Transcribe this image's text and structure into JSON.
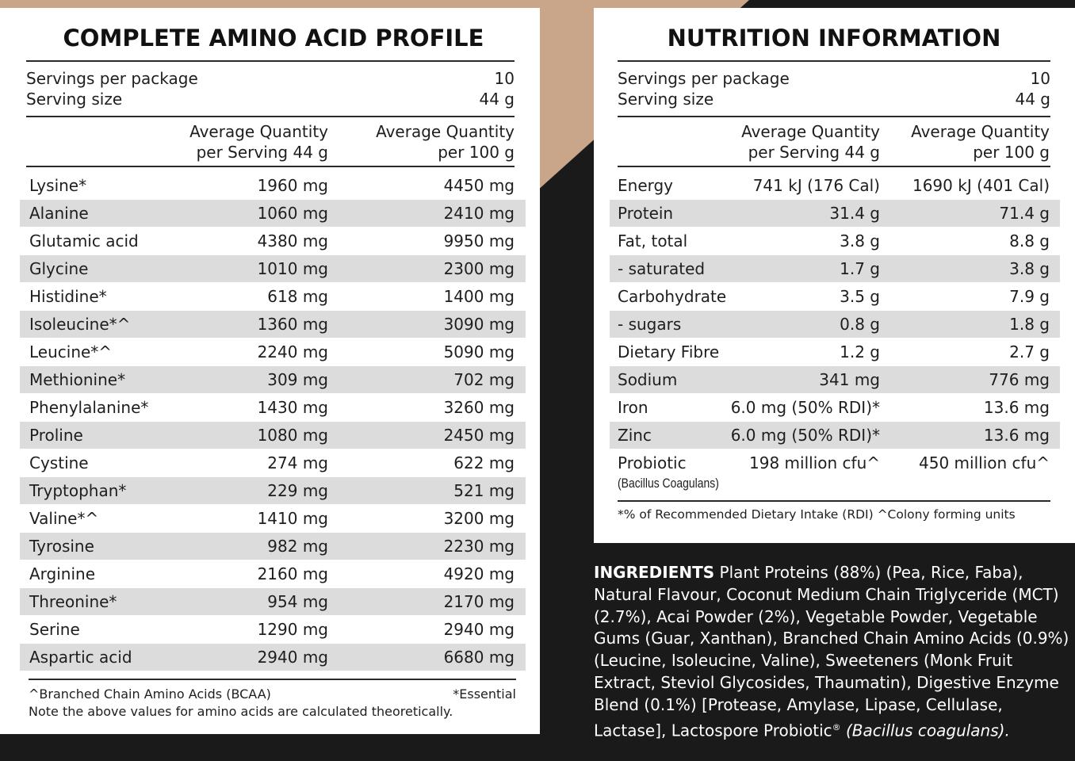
{
  "amino": {
    "title": "COMPLETE AMINO ACID PROFILE",
    "servings": [
      [
        "Servings per package",
        "10"
      ],
      [
        "Serving size",
        "44 g"
      ]
    ],
    "headers": [
      [
        "Average Quantity",
        "per Serving 44 g"
      ],
      [
        "Average Quantity",
        "per 100 g"
      ]
    ],
    "rows": [
      [
        "Lysine*",
        "1960 mg",
        "4450 mg"
      ],
      [
        "Alanine",
        "1060 mg",
        "2410 mg"
      ],
      [
        "Glutamic acid",
        "4380 mg",
        "9950 mg"
      ],
      [
        "Glycine",
        "1010 mg",
        "2300 mg"
      ],
      [
        "Histidine*",
        "618 mg",
        "1400 mg"
      ],
      [
        "Isoleucine*^",
        "1360 mg",
        "3090 mg"
      ],
      [
        "Leucine*^",
        "2240 mg",
        "5090 mg"
      ],
      [
        "Methionine*",
        "309 mg",
        "702 mg"
      ],
      [
        "Phenylalanine*",
        "1430 mg",
        "3260 mg"
      ],
      [
        "Proline",
        "1080 mg",
        "2450 mg"
      ],
      [
        "Cystine",
        "274 mg",
        "622 mg"
      ],
      [
        "Tryptophan*",
        "229 mg",
        "521 mg"
      ],
      [
        "Valine*^",
        "1410 mg",
        "3200 mg"
      ],
      [
        "Tyrosine",
        "982 mg",
        "2230 mg"
      ],
      [
        "Arginine",
        "2160 mg",
        "4920 mg"
      ],
      [
        "Threonine*",
        "954 mg",
        "2170 mg"
      ],
      [
        "Serine",
        "1290 mg",
        "2940 mg"
      ],
      [
        "Aspartic acid",
        "2940 mg",
        "6680 mg"
      ]
    ],
    "notes": [
      "^Branched Chain Amino Acids (BCAA)",
      "*Essential",
      "Note the above values for amino acids are calculated theoretically."
    ]
  },
  "nutrition": {
    "title": "NUTRITION INFORMATION",
    "servings": [
      [
        "Servings per package",
        "10"
      ],
      [
        "Serving size",
        "44 g"
      ]
    ],
    "headers": [
      [
        "Average Quantity",
        "per Serving 44 g"
      ],
      [
        "Average Quantity",
        "per 100 g"
      ]
    ],
    "rows": [
      [
        "Energy",
        "741 kJ (176 Cal)",
        "1690 kJ (401 Cal)"
      ],
      [
        "Protein",
        "31.4 g",
        "71.4 g"
      ],
      [
        "Fat, total",
        "3.8 g",
        "8.8 g"
      ],
      [
        "- saturated",
        "1.7 g",
        "3.8 g"
      ],
      [
        "Carbohydrate",
        "3.5 g",
        "7.9 g"
      ],
      [
        "- sugars",
        "0.8 g",
        "1.8 g"
      ],
      [
        "Dietary Fibre",
        "1.2 g",
        "2.7 g"
      ],
      [
        "Sodium",
        "341 mg",
        "776 mg"
      ],
      [
        "Iron",
        "6.0 mg (50% RDI)*",
        "13.6 mg"
      ],
      [
        "Zinc",
        "6.0 mg (50% RDI)*",
        "13.6 mg"
      ],
      [
        "Probiotic",
        "198 million cfu^",
        "450 million cfu^"
      ]
    ],
    "row_note": "(Bacillus Coagulans)",
    "footnote": "*% of Recommended Dietary Intake (RDI) ^Colony forming units"
  },
  "ingredients": {
    "label": "INGREDIENTS",
    "text": "Plant Proteins (88%) (Pea, Rice, Faba), Natural Flavour, Coconut Medium Chain Triglyceride (MCT) (2.7%), Acai Powder (2%), Vegetable Powder, Vegetable Gums (Guar, Xanthan), Branched Chain Amino Acids (0.9%) (Leucine, Isoleucine, Valine), Sweeteners (Monk Fruit Extract, Steviol Glycosides, Thaumatin), Digestive Enzyme Blend (0.1%) [Protease, Amylase, Lipase, Cellulase, Lactase], Lactospore Probiotic",
    "mark": "®",
    "italic": "(Bacillus coagulans)."
  }
}
